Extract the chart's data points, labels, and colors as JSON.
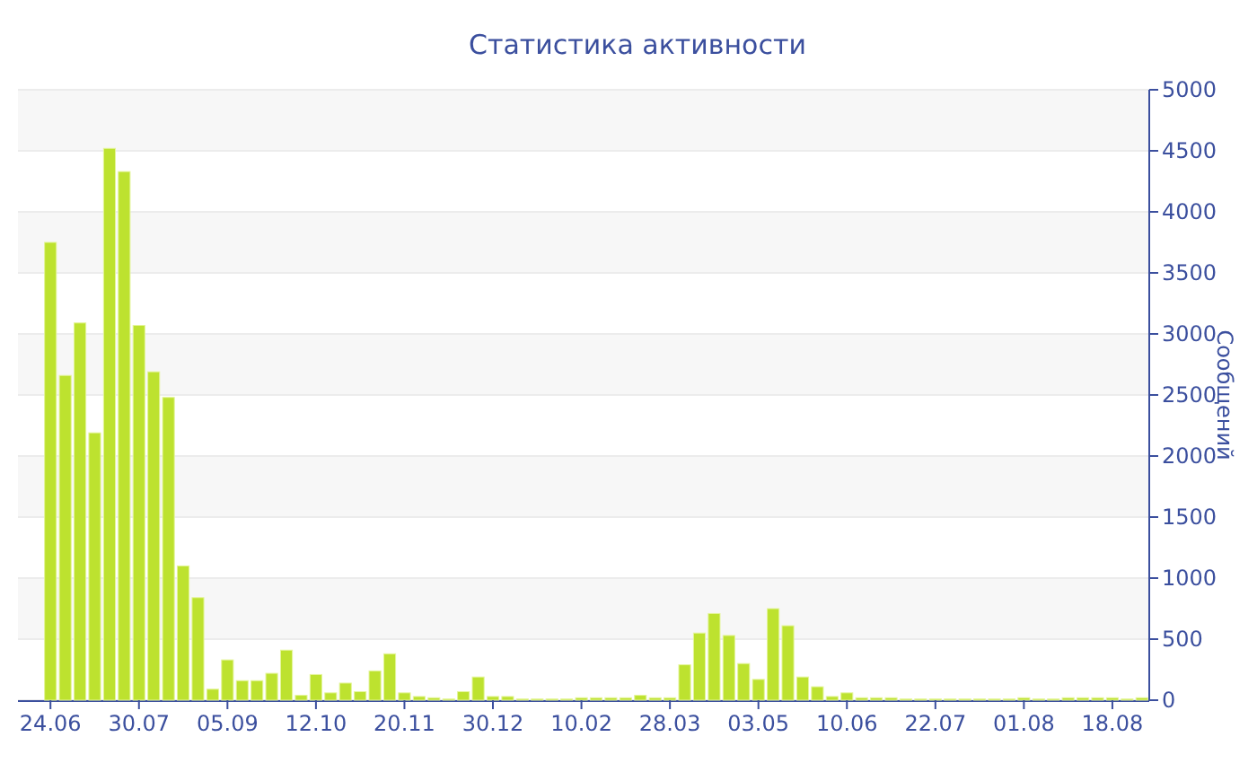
{
  "chart_data": {
    "type": "bar",
    "title": "Статистика активности",
    "ylabel": "Сообщений",
    "color": "#bde22f",
    "grid": "y",
    "categories": [
      "24.06",
      null,
      null,
      null,
      null,
      null,
      "30.07",
      null,
      null,
      null,
      null,
      null,
      "05.09",
      null,
      null,
      null,
      null,
      null,
      "12.10",
      null,
      null,
      null,
      null,
      null,
      "20.11",
      null,
      null,
      null,
      null,
      null,
      "30.12",
      null,
      null,
      null,
      null,
      null,
      "10.02",
      null,
      null,
      null,
      null,
      null,
      "28.03",
      null,
      null,
      null,
      null,
      null,
      "03.05",
      null,
      null,
      null,
      null,
      null,
      "10.06",
      null,
      null,
      null,
      null,
      null,
      "22.07",
      null,
      null,
      null,
      null,
      null,
      "01.08",
      null,
      null,
      null,
      null,
      null,
      "18.08",
      null,
      null
    ],
    "values": [
      3750,
      2660,
      3090,
      2190,
      4520,
      4330,
      3070,
      2690,
      2480,
      1100,
      840,
      90,
      330,
      160,
      160,
      220,
      410,
      40,
      210,
      60,
      140,
      70,
      240,
      380,
      60,
      30,
      20,
      10,
      70,
      190,
      30,
      30,
      10,
      10,
      10,
      10,
      20,
      20,
      20,
      20,
      40,
      20,
      20,
      290,
      550,
      710,
      530,
      300,
      170,
      750,
      610,
      190,
      110,
      30,
      60,
      20,
      20,
      20,
      10,
      10,
      10,
      10,
      10,
      10,
      10,
      10,
      20,
      10,
      10,
      20,
      20,
      20,
      20,
      10,
      20
    ],
    "ylim": [
      0,
      5000
    ],
    "yticks": [
      0,
      500,
      1000,
      1500,
      2000,
      2500,
      3000,
      3500,
      4000,
      4500,
      5000
    ]
  }
}
